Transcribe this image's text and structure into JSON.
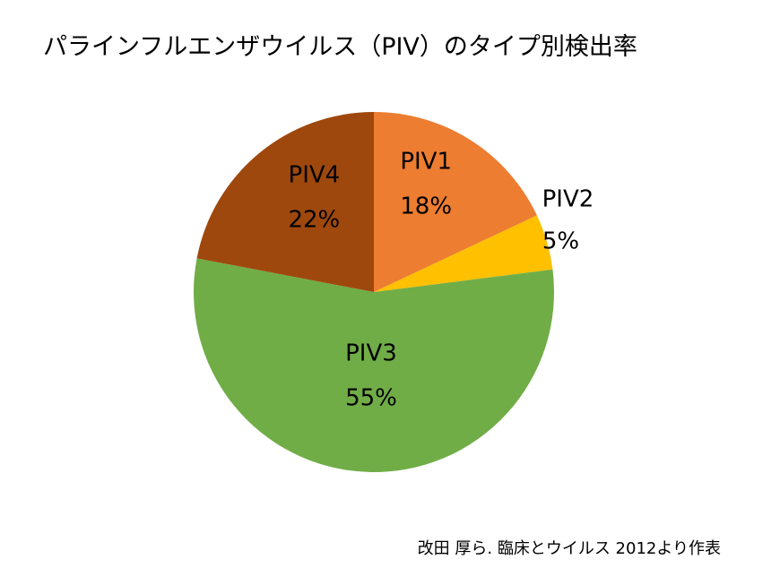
{
  "chart_data": {
    "type": "pie",
    "title": "パラインフルエンザウイルス（PIV）のタイプ別検出率",
    "slices": [
      {
        "label": "PIV1",
        "value": 18,
        "value_label": "18%",
        "color": "#ED7D31"
      },
      {
        "label": "PIV2",
        "value": 5,
        "value_label": "5%",
        "color": "#FFC000"
      },
      {
        "label": "PIV3",
        "value": 55,
        "value_label": "55%",
        "color": "#70AD47"
      },
      {
        "label": "PIV4",
        "value": 22,
        "value_label": "22%",
        "color": "#9E480E"
      }
    ],
    "start": "12 o'clock",
    "direction": "clockwise",
    "legend": "none",
    "labels": "inside"
  },
  "source_note": "改田 厚ら. 臨床とウイルス 2012より作表"
}
